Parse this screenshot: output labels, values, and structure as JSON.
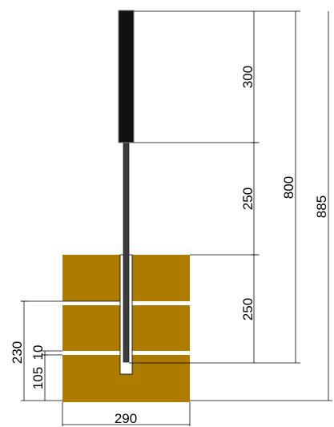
{
  "dimensions": {
    "height_sign": "300",
    "height_upper_post": "250",
    "height_embedded": "250",
    "height_to_post_bottom": "800",
    "height_total": "885",
    "depth_lower_stripe": "230",
    "gap_small": "10",
    "depth_bottom": "105",
    "base_width": "290"
  },
  "colors": {
    "footing": "#ac7b00",
    "stripe": "#ffffff",
    "sign_panel": "#111111",
    "post": "#3c3c3c",
    "line": "#000000"
  }
}
